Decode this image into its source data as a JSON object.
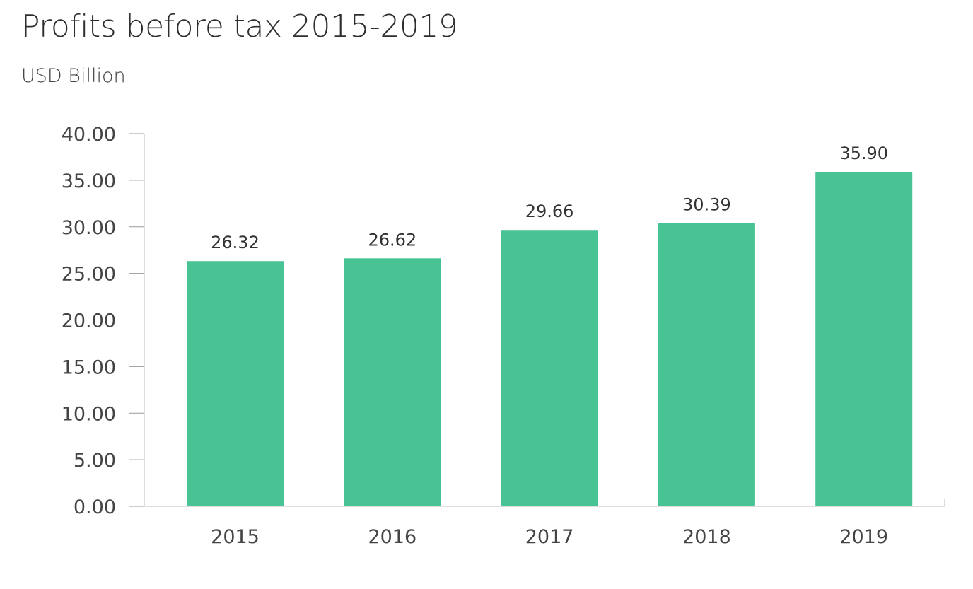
{
  "chart_data": {
    "type": "bar",
    "title": "Profits before tax 2015-2019",
    "subtitle": "USD Billion",
    "xlabel": "",
    "ylabel": "",
    "categories": [
      "2015",
      "2016",
      "2017",
      "2018",
      "2019"
    ],
    "values": [
      26.32,
      26.62,
      29.66,
      30.39,
      35.9
    ],
    "data_labels": [
      "26.32",
      "26.62",
      "29.66",
      "30.39",
      "35.90"
    ],
    "ylim": [
      0,
      40
    ],
    "yticks": [
      "0.00",
      "5.00",
      "10.00",
      "15.00",
      "20.00",
      "25.00",
      "30.00",
      "35.00",
      "40.00"
    ],
    "grid": false,
    "legend": "none",
    "bar_color": "#48c394"
  }
}
